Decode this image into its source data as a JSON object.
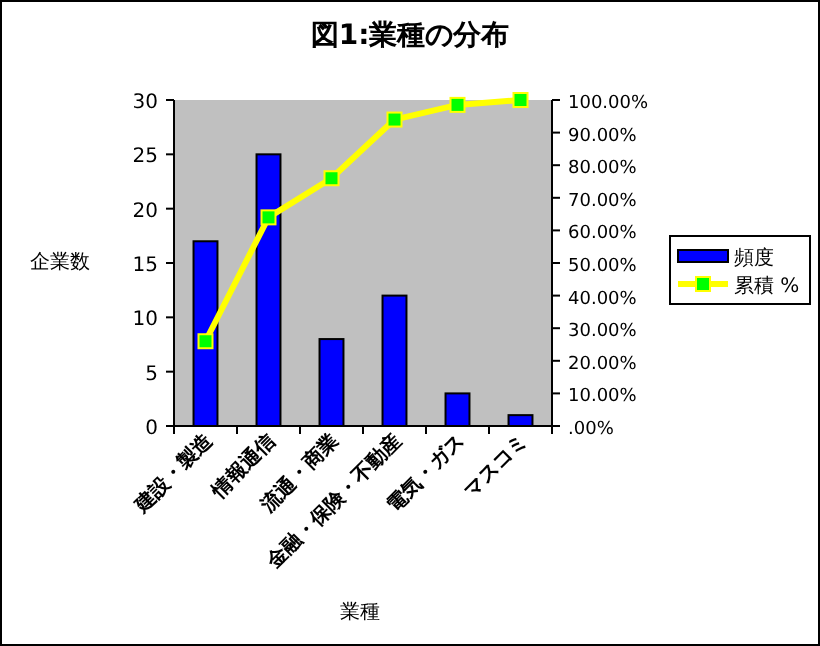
{
  "chart_data": {
    "type": "bar",
    "title": "図1:業種の分布",
    "xlabel": "業種",
    "ylabel": "企業数",
    "categories": [
      "建設・製造",
      "情報通信",
      "流通・商業",
      "金融・保険・不動産",
      "電気・ガス",
      "マスコミ"
    ],
    "series": [
      {
        "name": "頻度",
        "color": "#0000ff",
        "values": [
          17,
          25,
          8,
          12,
          3,
          1
        ]
      },
      {
        "name": "累積 %",
        "type": "line",
        "axis": "y2",
        "color": "#ffff00",
        "values": [
          26,
          64,
          76,
          94,
          98.5,
          100
        ]
      }
    ],
    "ylim": [
      0,
      30
    ],
    "yticks": [
      0,
      5,
      10,
      15,
      20,
      25,
      30
    ],
    "y2lim": [
      0,
      100
    ],
    "y2ticks": [
      {
        "value": 0,
        "label": ".00%"
      },
      {
        "value": 10,
        "label": "10.00%"
      },
      {
        "value": 20,
        "label": "20.00%"
      },
      {
        "value": 30,
        "label": "30.00%"
      },
      {
        "value": 40,
        "label": "40.00%"
      },
      {
        "value": 50,
        "label": "50.00%"
      },
      {
        "value": 60,
        "label": "60.00%"
      },
      {
        "value": 70,
        "label": "70.00%"
      },
      {
        "value": 80,
        "label": "80.00%"
      },
      {
        "value": 90,
        "label": "90.00%"
      },
      {
        "value": 100,
        "label": "100.00%"
      }
    ],
    "legend": "right",
    "marker": "square",
    "grid": false
  }
}
